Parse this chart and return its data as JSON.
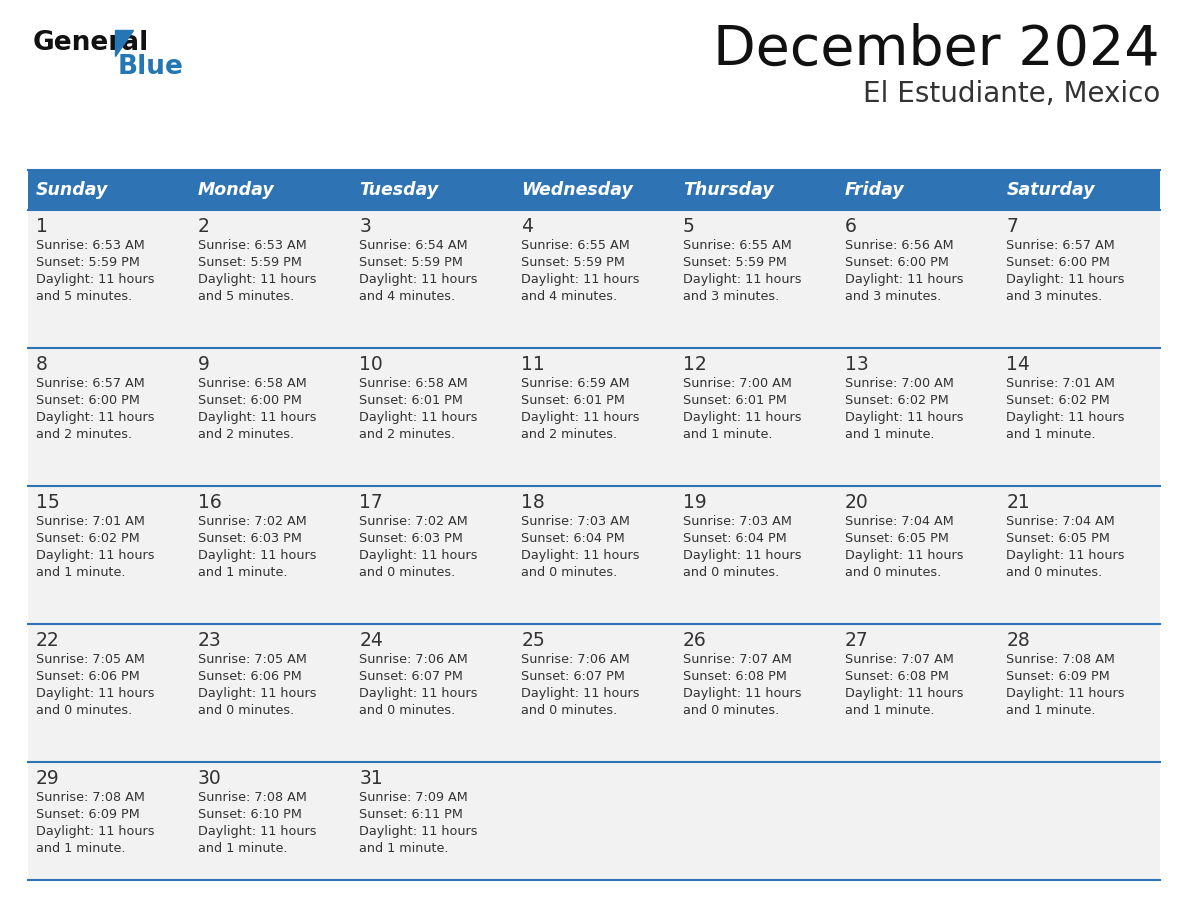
{
  "title": "December 2024",
  "subtitle": "El Estudiante, Mexico",
  "header_bg": "#2E74B5",
  "header_text_color": "#FFFFFF",
  "day_names": [
    "Sunday",
    "Monday",
    "Tuesday",
    "Wednesday",
    "Thursday",
    "Friday",
    "Saturday"
  ],
  "row_bg": "#F2F2F2",
  "cell_text_color": "#333333",
  "divider_color": "#2E74B5",
  "calendar": [
    [
      {
        "day": 1,
        "sunrise": "6:53 AM",
        "sunset": "5:59 PM",
        "daylight_l1": "Daylight: 11 hours",
        "daylight_l2": "and 5 minutes."
      },
      {
        "day": 2,
        "sunrise": "6:53 AM",
        "sunset": "5:59 PM",
        "daylight_l1": "Daylight: 11 hours",
        "daylight_l2": "and 5 minutes."
      },
      {
        "day": 3,
        "sunrise": "6:54 AM",
        "sunset": "5:59 PM",
        "daylight_l1": "Daylight: 11 hours",
        "daylight_l2": "and 4 minutes."
      },
      {
        "day": 4,
        "sunrise": "6:55 AM",
        "sunset": "5:59 PM",
        "daylight_l1": "Daylight: 11 hours",
        "daylight_l2": "and 4 minutes."
      },
      {
        "day": 5,
        "sunrise": "6:55 AM",
        "sunset": "5:59 PM",
        "daylight_l1": "Daylight: 11 hours",
        "daylight_l2": "and 3 minutes."
      },
      {
        "day": 6,
        "sunrise": "6:56 AM",
        "sunset": "6:00 PM",
        "daylight_l1": "Daylight: 11 hours",
        "daylight_l2": "and 3 minutes."
      },
      {
        "day": 7,
        "sunrise": "6:57 AM",
        "sunset": "6:00 PM",
        "daylight_l1": "Daylight: 11 hours",
        "daylight_l2": "and 3 minutes."
      }
    ],
    [
      {
        "day": 8,
        "sunrise": "6:57 AM",
        "sunset": "6:00 PM",
        "daylight_l1": "Daylight: 11 hours",
        "daylight_l2": "and 2 minutes."
      },
      {
        "day": 9,
        "sunrise": "6:58 AM",
        "sunset": "6:00 PM",
        "daylight_l1": "Daylight: 11 hours",
        "daylight_l2": "and 2 minutes."
      },
      {
        "day": 10,
        "sunrise": "6:58 AM",
        "sunset": "6:01 PM",
        "daylight_l1": "Daylight: 11 hours",
        "daylight_l2": "and 2 minutes."
      },
      {
        "day": 11,
        "sunrise": "6:59 AM",
        "sunset": "6:01 PM",
        "daylight_l1": "Daylight: 11 hours",
        "daylight_l2": "and 2 minutes."
      },
      {
        "day": 12,
        "sunrise": "7:00 AM",
        "sunset": "6:01 PM",
        "daylight_l1": "Daylight: 11 hours",
        "daylight_l2": "and 1 minute."
      },
      {
        "day": 13,
        "sunrise": "7:00 AM",
        "sunset": "6:02 PM",
        "daylight_l1": "Daylight: 11 hours",
        "daylight_l2": "and 1 minute."
      },
      {
        "day": 14,
        "sunrise": "7:01 AM",
        "sunset": "6:02 PM",
        "daylight_l1": "Daylight: 11 hours",
        "daylight_l2": "and 1 minute."
      }
    ],
    [
      {
        "day": 15,
        "sunrise": "7:01 AM",
        "sunset": "6:02 PM",
        "daylight_l1": "Daylight: 11 hours",
        "daylight_l2": "and 1 minute."
      },
      {
        "day": 16,
        "sunrise": "7:02 AM",
        "sunset": "6:03 PM",
        "daylight_l1": "Daylight: 11 hours",
        "daylight_l2": "and 1 minute."
      },
      {
        "day": 17,
        "sunrise": "7:02 AM",
        "sunset": "6:03 PM",
        "daylight_l1": "Daylight: 11 hours",
        "daylight_l2": "and 0 minutes."
      },
      {
        "day": 18,
        "sunrise": "7:03 AM",
        "sunset": "6:04 PM",
        "daylight_l1": "Daylight: 11 hours",
        "daylight_l2": "and 0 minutes."
      },
      {
        "day": 19,
        "sunrise": "7:03 AM",
        "sunset": "6:04 PM",
        "daylight_l1": "Daylight: 11 hours",
        "daylight_l2": "and 0 minutes."
      },
      {
        "day": 20,
        "sunrise": "7:04 AM",
        "sunset": "6:05 PM",
        "daylight_l1": "Daylight: 11 hours",
        "daylight_l2": "and 0 minutes."
      },
      {
        "day": 21,
        "sunrise": "7:04 AM",
        "sunset": "6:05 PM",
        "daylight_l1": "Daylight: 11 hours",
        "daylight_l2": "and 0 minutes."
      }
    ],
    [
      {
        "day": 22,
        "sunrise": "7:05 AM",
        "sunset": "6:06 PM",
        "daylight_l1": "Daylight: 11 hours",
        "daylight_l2": "and 0 minutes."
      },
      {
        "day": 23,
        "sunrise": "7:05 AM",
        "sunset": "6:06 PM",
        "daylight_l1": "Daylight: 11 hours",
        "daylight_l2": "and 0 minutes."
      },
      {
        "day": 24,
        "sunrise": "7:06 AM",
        "sunset": "6:07 PM",
        "daylight_l1": "Daylight: 11 hours",
        "daylight_l2": "and 0 minutes."
      },
      {
        "day": 25,
        "sunrise": "7:06 AM",
        "sunset": "6:07 PM",
        "daylight_l1": "Daylight: 11 hours",
        "daylight_l2": "and 0 minutes."
      },
      {
        "day": 26,
        "sunrise": "7:07 AM",
        "sunset": "6:08 PM",
        "daylight_l1": "Daylight: 11 hours",
        "daylight_l2": "and 0 minutes."
      },
      {
        "day": 27,
        "sunrise": "7:07 AM",
        "sunset": "6:08 PM",
        "daylight_l1": "Daylight: 11 hours",
        "daylight_l2": "and 1 minute."
      },
      {
        "day": 28,
        "sunrise": "7:08 AM",
        "sunset": "6:09 PM",
        "daylight_l1": "Daylight: 11 hours",
        "daylight_l2": "and 1 minute."
      }
    ],
    [
      {
        "day": 29,
        "sunrise": "7:08 AM",
        "sunset": "6:09 PM",
        "daylight_l1": "Daylight: 11 hours",
        "daylight_l2": "and 1 minute."
      },
      {
        "day": 30,
        "sunrise": "7:08 AM",
        "sunset": "6:10 PM",
        "daylight_l1": "Daylight: 11 hours",
        "daylight_l2": "and 1 minute."
      },
      {
        "day": 31,
        "sunrise": "7:09 AM",
        "sunset": "6:11 PM",
        "daylight_l1": "Daylight: 11 hours",
        "daylight_l2": "and 1 minute."
      },
      null,
      null,
      null,
      null
    ]
  ],
  "logo_color_general": "#111111",
  "logo_color_blue": "#2476B5"
}
